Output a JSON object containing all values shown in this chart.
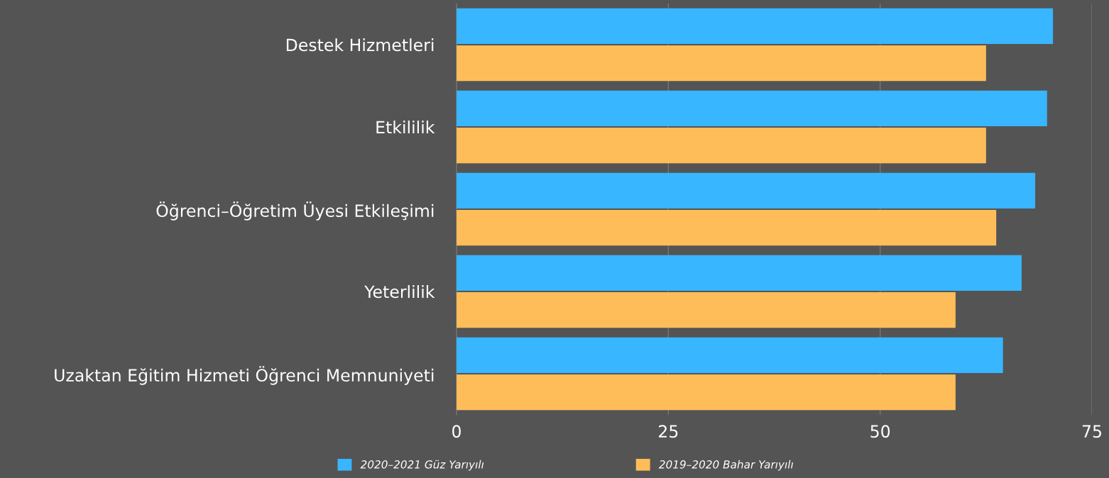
{
  "chart_data": {
    "type": "bar",
    "orientation": "horizontal",
    "categories": [
      "Destek Hizmetleri",
      "Etkililik",
      "Öğrenci–Öğretim Üyesi Etkileşimi",
      "Yeterlilik",
      "Uzaktan Eğitim Hizmeti Öğrenci Memnuniyeti"
    ],
    "series": [
      {
        "name": "2020–2021 Güz Yarıyılı",
        "color": "#38b6ff",
        "values": [
          70.4,
          69.7,
          68.3,
          66.7,
          64.5
        ]
      },
      {
        "name": "2019–2020 Bahar Yarıyılı",
        "color": "#ffbd59",
        "values": [
          62.5,
          62.5,
          63.7,
          58.9,
          58.9
        ]
      }
    ],
    "xlim": [
      0,
      75
    ],
    "xticks": [
      0,
      25,
      50,
      75
    ],
    "grid": "x",
    "legend": "bottom"
  }
}
